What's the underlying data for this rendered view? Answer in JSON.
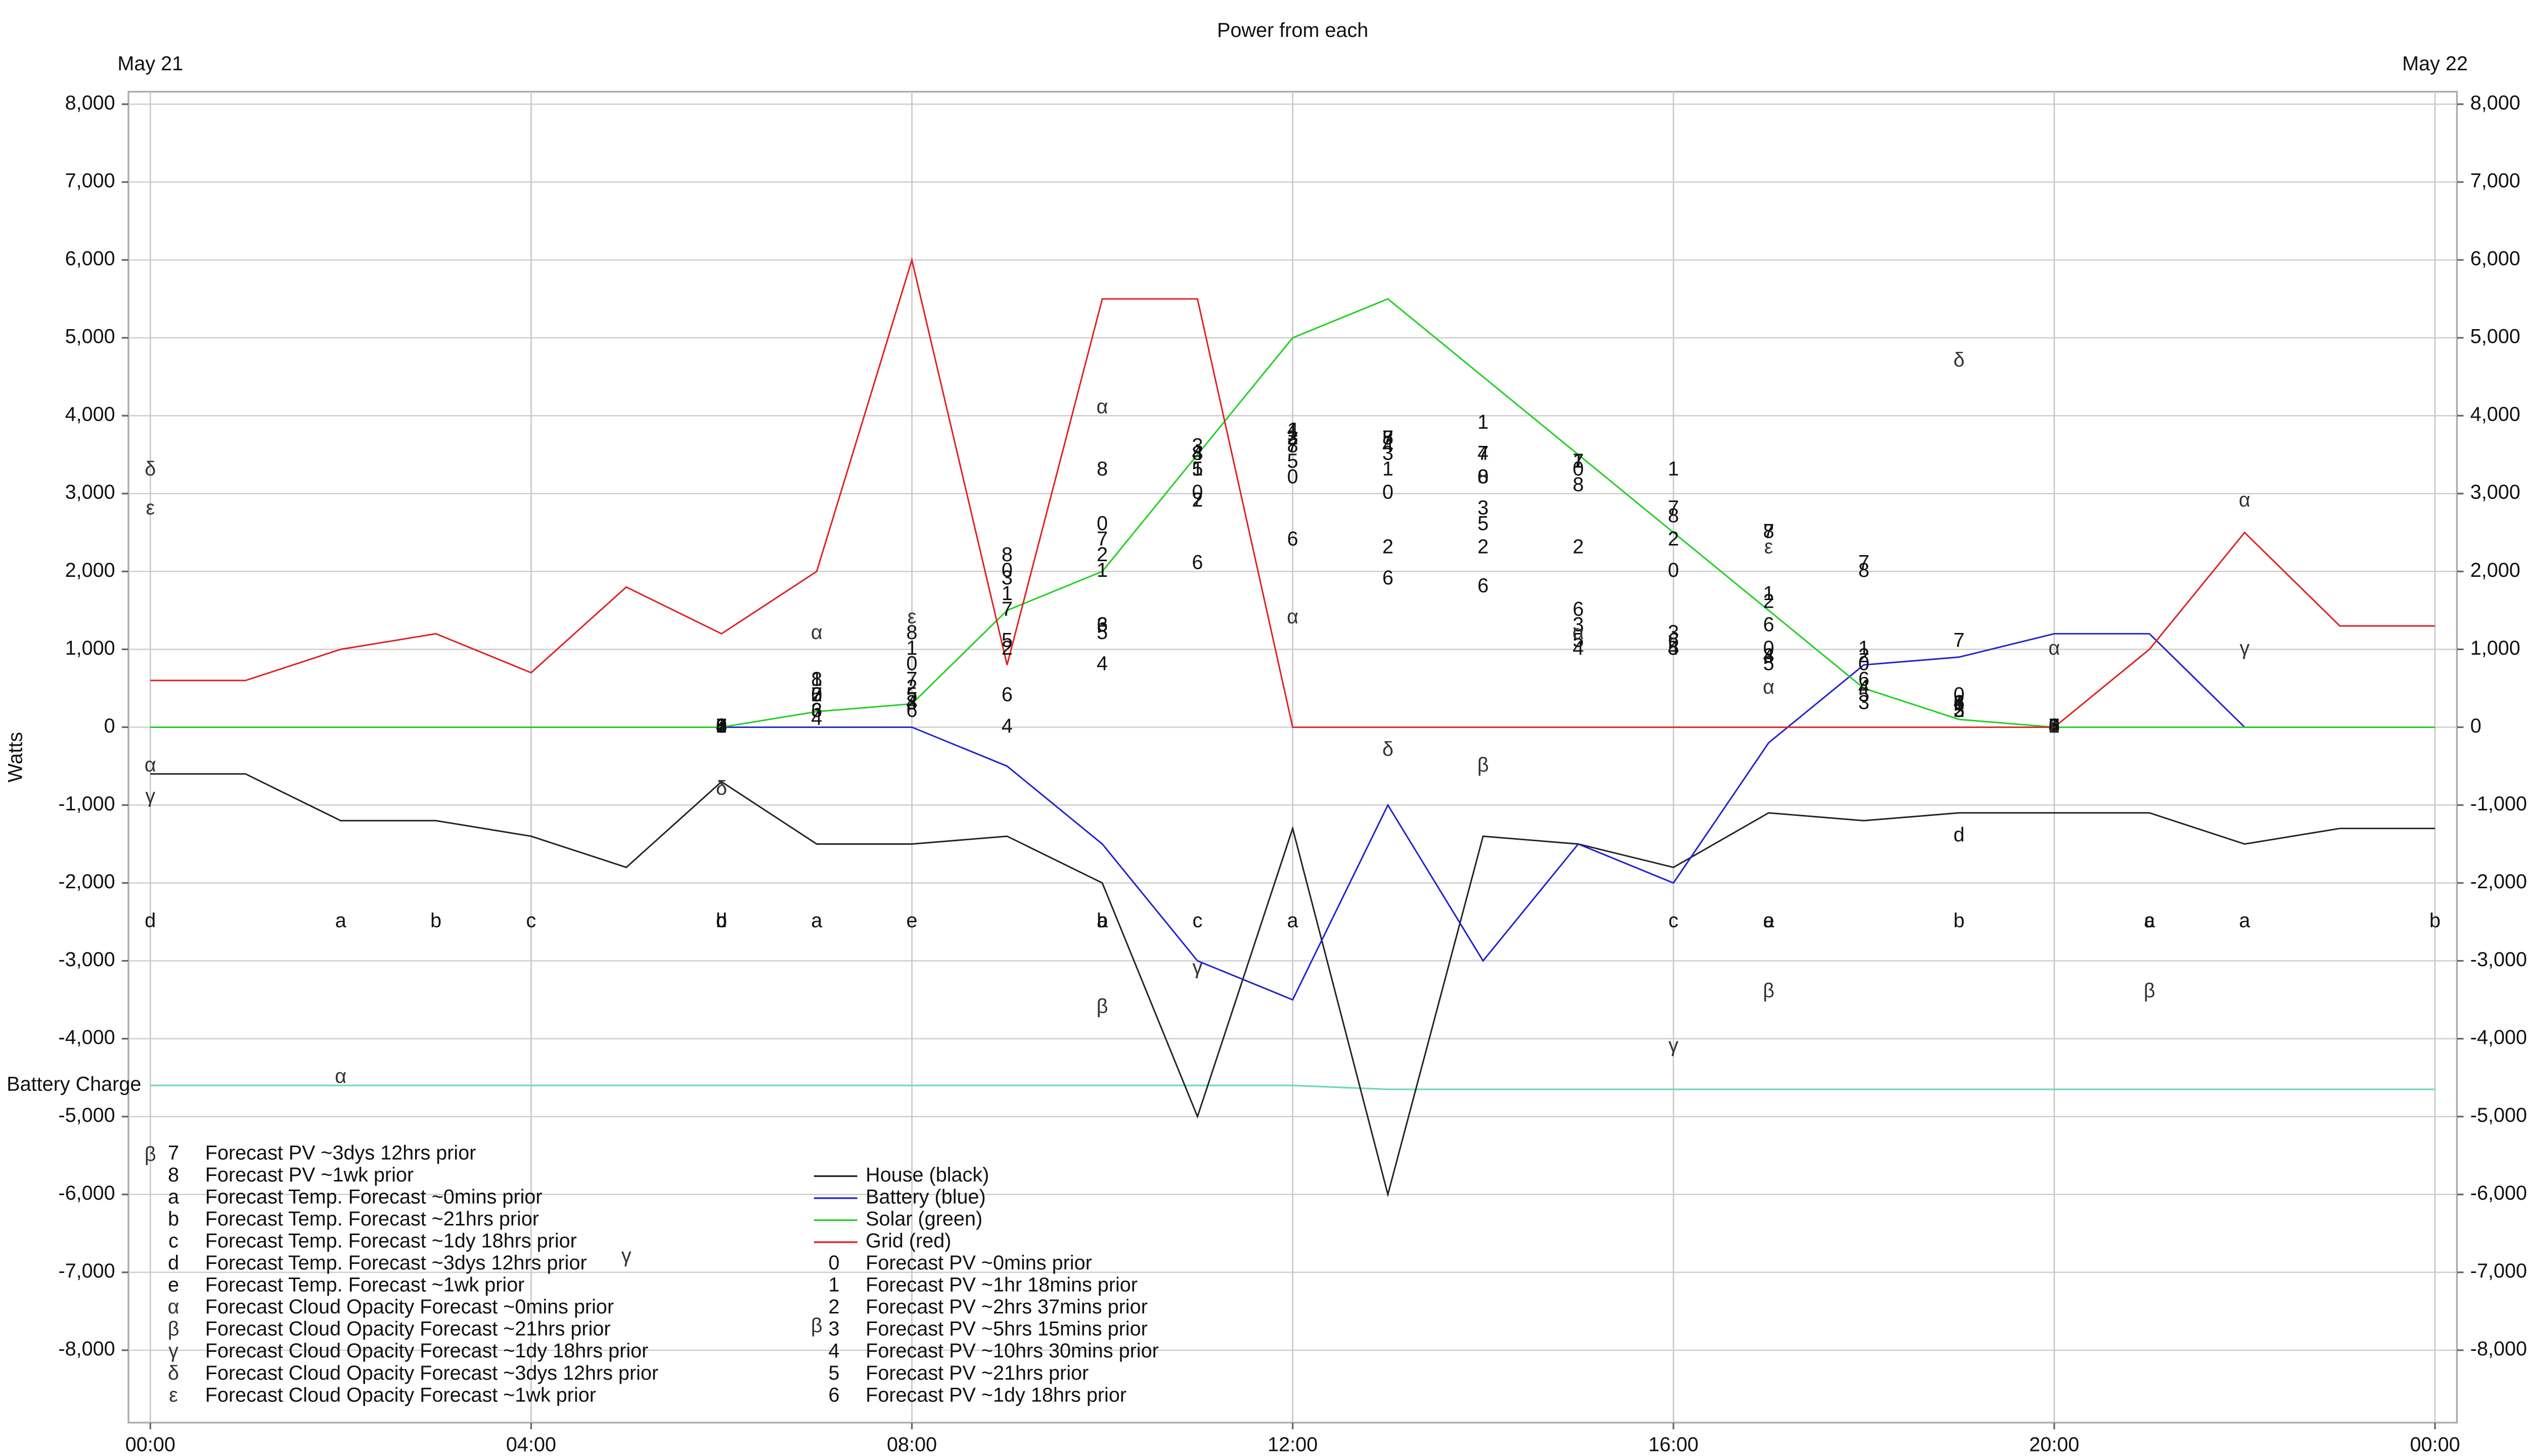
{
  "chart_data": {
    "type": "line",
    "title": "Power from each",
    "ylabel": "Watts",
    "top_labels": [
      {
        "value": 0,
        "label": "May 21"
      },
      {
        "value": 24,
        "label": "May 22"
      }
    ],
    "x": [
      0,
      1,
      2,
      3,
      4,
      5,
      6,
      7,
      8,
      9,
      10,
      11,
      12,
      13,
      14,
      15,
      16,
      17,
      18,
      19,
      20,
      21,
      22,
      23,
      24
    ],
    "xlim": [
      -0.23,
      24.23
    ],
    "xticks": [
      {
        "value": 0,
        "label": "00:00"
      },
      {
        "value": 4,
        "label": "04:00"
      },
      {
        "value": 8,
        "label": "08:00"
      },
      {
        "value": 12,
        "label": "12:00"
      },
      {
        "value": 16,
        "label": "16:00"
      },
      {
        "value": 20,
        "label": "20:00"
      },
      {
        "value": 24,
        "label": "00:00"
      }
    ],
    "ylim": [
      -8930,
      8160
    ],
    "yticks": [
      {
        "value": -8000,
        "label": "-8,000"
      },
      {
        "value": -7000,
        "label": "-7,000"
      },
      {
        "value": -6000,
        "label": "-6,000"
      },
      {
        "value": -5000,
        "label": "-5,000"
      },
      {
        "value": -4000,
        "label": "-4,000"
      },
      {
        "value": -3000,
        "label": "-3,000"
      },
      {
        "value": -2000,
        "label": "-2,000"
      },
      {
        "value": -1000,
        "label": "-1,000"
      },
      0,
      {
        "value": 1000,
        "label": "1,000"
      },
      {
        "value": 2000,
        "label": "2,000"
      },
      {
        "value": 3000,
        "label": "3,000"
      },
      {
        "value": 4000,
        "label": "4,000"
      },
      {
        "value": 5000,
        "label": "5,000"
      },
      {
        "value": 6000,
        "label": "6,000"
      },
      {
        "value": 7000,
        "label": "7,000"
      },
      {
        "value": 8000,
        "label": "8,000"
      }
    ],
    "grid": true,
    "battery_charge": {
      "name": "Battery Charge",
      "color": "#70d8c0",
      "values": [
        -4600,
        -4600,
        -4600,
        -4600,
        -4600,
        -4600,
        -4600,
        -4600,
        -4600,
        -4600,
        -4600,
        -4600,
        -4600,
        -4650,
        -4650,
        -4650,
        -4650,
        -4650,
        -4650,
        -4650,
        -4650,
        -4650,
        -4650,
        -4650,
        -4650
      ]
    },
    "series": [
      {
        "name": "House (black)",
        "color": "#222222",
        "style": "line",
        "values": [
          -600,
          -600,
          -1200,
          -1200,
          -1400,
          -1800,
          -700,
          -1500,
          -1500,
          -1400,
          -2000,
          -5000,
          -1300,
          -6000,
          -1400,
          -1500,
          -1800,
          -1100,
          -1200,
          -1100,
          -1100,
          -1100,
          -1500,
          -1300,
          -1300
        ]
      },
      {
        "name": "Battery (blue)",
        "color": "#2020d0",
        "style": "line",
        "values": [
          0,
          0,
          0,
          0,
          0,
          0,
          0,
          0,
          0,
          -500,
          -1500,
          -3000,
          -3500,
          -1000,
          -3000,
          -1500,
          -2000,
          -200,
          800,
          900,
          1200,
          1200,
          0,
          0,
          0
        ]
      },
      {
        "name": "Solar (green)",
        "color": "#20d020",
        "style": "line",
        "values": [
          0,
          0,
          0,
          0,
          0,
          0,
          0,
          200,
          300,
          1500,
          2000,
          3500,
          5000,
          5500,
          4500,
          3500,
          2500,
          1500,
          500,
          100,
          0,
          0,
          0,
          0,
          0
        ]
      },
      {
        "name": "Grid (red)",
        "color": "#e02020",
        "style": "line",
        "values": [
          600,
          600,
          1000,
          1200,
          700,
          1800,
          1200,
          2000,
          6000,
          800,
          5500,
          5500,
          0,
          0,
          0,
          0,
          0,
          0,
          0,
          0,
          0,
          1000,
          2500,
          1300,
          1300
        ]
      },
      {
        "name": "Forecast PV ~0mins prior",
        "marker": "0",
        "color": "#111111",
        "style": "markers",
        "values": [
          null,
          null,
          null,
          null,
          null,
          null,
          0,
          400,
          800,
          2000,
          2600,
          3000,
          3200,
          3000,
          3200,
          3300,
          2000,
          1000,
          800,
          400,
          0,
          null,
          null,
          null,
          null
        ]
      },
      {
        "name": "Forecast PV ~1hr 18mins prior",
        "marker": "1",
        "color": "#111111",
        "style": "markers",
        "values": [
          null,
          null,
          null,
          null,
          null,
          null,
          0,
          600,
          1000,
          1700,
          2000,
          3300,
          3800,
          3300,
          3900,
          3400,
          3300,
          1700,
          1000,
          300,
          0,
          null,
          null,
          null,
          null
        ]
      },
      {
        "name": "Forecast PV ~2hrs 37mins prior",
        "marker": "2",
        "color": "#111111",
        "style": "markers",
        "values": [
          null,
          null,
          null,
          null,
          null,
          null,
          0,
          400,
          500,
          1000,
          2200,
          2900,
          3700,
          2300,
          2300,
          2300,
          2400,
          1600,
          900,
          200,
          0,
          null,
          null,
          null,
          null
        ]
      },
      {
        "name": "Forecast PV ~5hrs 15mins prior",
        "marker": "3",
        "color": "#111111",
        "style": "markers",
        "values": [
          null,
          null,
          null,
          null,
          null,
          null,
          0,
          200,
          300,
          1900,
          1300,
          3600,
          3700,
          3500,
          2800,
          1300,
          1200,
          900,
          300,
          200,
          0,
          null,
          null,
          null,
          null
        ]
      },
      {
        "name": "Forecast PV ~10hrs 30mins prior",
        "marker": "4",
        "color": "#111111",
        "style": "markers",
        "values": [
          null,
          null,
          null,
          null,
          null,
          null,
          0,
          100,
          300,
          0,
          800,
          3500,
          3800,
          3600,
          3500,
          1000,
          1000,
          900,
          500,
          300,
          0,
          null,
          null,
          null,
          null
        ]
      },
      {
        "name": "Forecast PV ~21hrs prior",
        "marker": "5",
        "color": "#111111",
        "style": "markers",
        "values": [
          null,
          null,
          null,
          null,
          null,
          null,
          0,
          400,
          400,
          1100,
          1200,
          3300,
          3400,
          3700,
          2600,
          1100,
          1000,
          800,
          400,
          200,
          0,
          null,
          null,
          null,
          null
        ]
      },
      {
        "name": "Forecast PV ~1dy 18hrs prior",
        "marker": "6",
        "color": "#111111",
        "style": "markers",
        "values": [
          null,
          null,
          null,
          null,
          null,
          null,
          0,
          200,
          200,
          400,
          1300,
          2100,
          2400,
          1900,
          1800,
          1500,
          1100,
          1300,
          600,
          300,
          0,
          null,
          null,
          null,
          null
        ]
      },
      {
        "name": "Forecast PV ~3dys 12hrs prior",
        "marker": "7",
        "color": "#111111",
        "style": "markers",
        "values": [
          null,
          null,
          null,
          null,
          null,
          null,
          0,
          400,
          600,
          1500,
          2400,
          2900,
          3600,
          3700,
          3500,
          3400,
          2800,
          2500,
          2100,
          1100,
          0,
          null,
          null,
          null,
          null
        ]
      },
      {
        "name": "Forecast PV ~1wk prior",
        "marker": "8",
        "color": "#111111",
        "style": "markers",
        "values": [
          null,
          null,
          null,
          null,
          null,
          null,
          0,
          600,
          1200,
          2200,
          3300,
          3500,
          3600,
          3700,
          3200,
          3100,
          2700,
          2500,
          2000,
          300,
          0,
          null,
          null,
          null,
          null
        ]
      },
      {
        "name": "Forecast Temp. Forecast ~0mins prior",
        "marker": "a",
        "color": "#111111",
        "style": "markers",
        "values": [
          null,
          null,
          -2500,
          null,
          null,
          null,
          null,
          -2500,
          null,
          null,
          -2500,
          null,
          -2500,
          null,
          null,
          null,
          null,
          -2500,
          null,
          null,
          null,
          -2500,
          -2500,
          null,
          null
        ]
      },
      {
        "name": "Forecast Temp. Forecast ~21hrs prior",
        "marker": "b",
        "color": "#111111",
        "style": "markers",
        "values": [
          null,
          null,
          null,
          -2500,
          null,
          null,
          -2500,
          null,
          null,
          null,
          -2500,
          null,
          null,
          null,
          null,
          null,
          null,
          null,
          null,
          -2500,
          null,
          null,
          null,
          null,
          -2500
        ]
      },
      {
        "name": "Forecast Temp. Forecast ~1dy 18hrs prior",
        "marker": "c",
        "color": "#111111",
        "style": "markers",
        "values": [
          null,
          null,
          null,
          null,
          -2500,
          null,
          null,
          null,
          null,
          null,
          null,
          -2500,
          null,
          null,
          null,
          null,
          -2500,
          null,
          null,
          null,
          null,
          -2500,
          null,
          null,
          null
        ]
      },
      {
        "name": "Forecast Temp. Forecast ~3dys 12hrs prior",
        "marker": "d",
        "color": "#111111",
        "style": "markers",
        "values": [
          -2500,
          null,
          null,
          null,
          null,
          null,
          -2500,
          null,
          null,
          null,
          null,
          null,
          null,
          null,
          null,
          null,
          null,
          null,
          null,
          -1400,
          null,
          null,
          null,
          null,
          null
        ]
      },
      {
        "name": "Forecast Temp. Forecast ~1wk prior",
        "marker": "e",
        "color": "#111111",
        "style": "markers",
        "values": [
          null,
          null,
          null,
          null,
          null,
          null,
          null,
          null,
          -2500,
          null,
          null,
          null,
          null,
          null,
          null,
          null,
          null,
          -2500,
          null,
          null,
          null,
          null,
          null,
          null,
          null
        ]
      },
      {
        "name": "Forecast Cloud Opacity Forecast ~0mins prior",
        "marker": "α",
        "color": "#333333",
        "style": "markers",
        "values": [
          -500,
          null,
          -4500,
          null,
          null,
          null,
          null,
          1200,
          null,
          null,
          4100,
          null,
          1400,
          null,
          null,
          1200,
          null,
          500,
          null,
          null,
          1000,
          null,
          2900,
          null,
          null
        ]
      },
      {
        "name": "Forecast Cloud Opacity Forecast ~21hrs prior",
        "marker": "β",
        "color": "#333333",
        "style": "markers",
        "values": [
          -5500,
          null,
          null,
          null,
          null,
          null,
          null,
          -7700,
          null,
          null,
          -3600,
          null,
          null,
          null,
          -500,
          null,
          null,
          -3400,
          null,
          null,
          null,
          -3400,
          null,
          null,
          null
        ]
      },
      {
        "name": "Forecast Cloud Opacity Forecast ~1dy 18hrs prior",
        "marker": "γ",
        "color": "#333333",
        "style": "markers",
        "values": [
          -900,
          null,
          null,
          null,
          null,
          -6800,
          null,
          null,
          null,
          null,
          null,
          -3100,
          null,
          null,
          null,
          null,
          -4100,
          null,
          null,
          null,
          null,
          null,
          1000,
          null,
          null
        ]
      },
      {
        "name": "Forecast Cloud Opacity Forecast ~3dys 12hrs prior",
        "marker": "δ",
        "color": "#333333",
        "style": "markers",
        "values": [
          3300,
          null,
          null,
          null,
          null,
          null,
          -800,
          null,
          null,
          null,
          null,
          null,
          null,
          -300,
          null,
          null,
          null,
          null,
          null,
          4700,
          null,
          null,
          null,
          null,
          null
        ]
      },
      {
        "name": "Forecast Cloud Opacity Forecast ~1wk prior",
        "marker": "ε",
        "color": "#333333",
        "style": "markers",
        "values": [
          2800,
          null,
          null,
          null,
          null,
          null,
          null,
          null,
          1400,
          null,
          null,
          null,
          null,
          null,
          null,
          null,
          null,
          2300,
          null,
          null,
          0,
          null,
          null,
          null,
          null
        ]
      }
    ]
  }
}
